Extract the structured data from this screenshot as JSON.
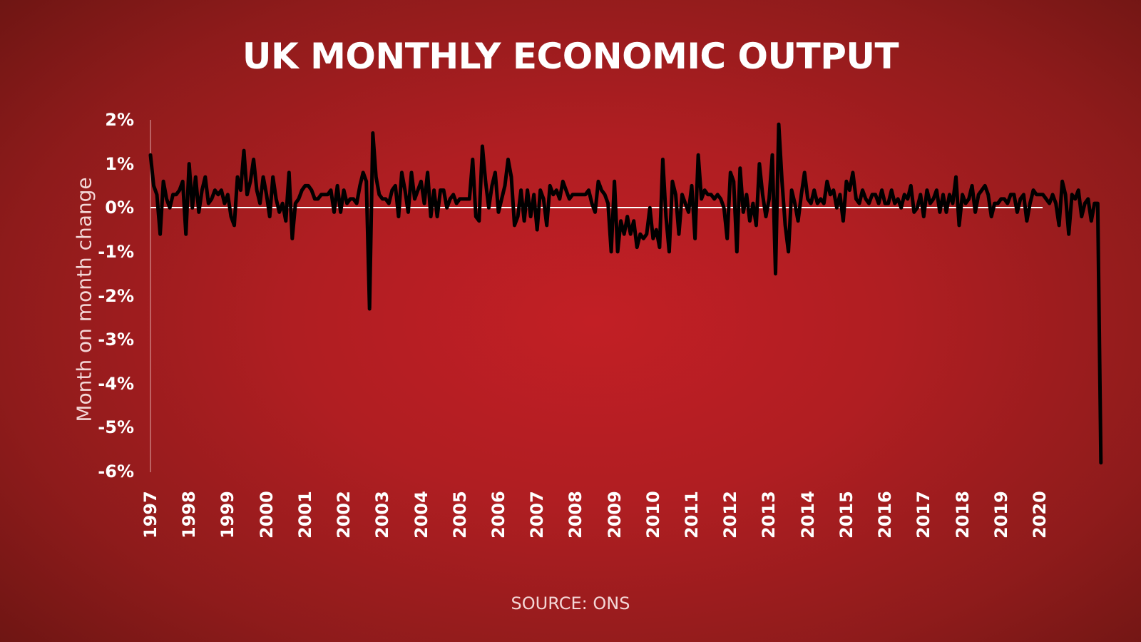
{
  "title": "UK MONTHLY ECONOMIC OUTPUT",
  "source": "SOURCE: ONS",
  "colors": {
    "background_center": "#c21f25",
    "background_edge": "#661411",
    "line": "#000000",
    "zero_line": "#ffffff",
    "text": "#ffffff"
  },
  "chart_data": {
    "type": "line",
    "title": "UK MONTHLY ECONOMIC OUTPUT",
    "xlabel": "",
    "ylabel": "Month on month change",
    "ylim": [
      -6,
      2
    ],
    "yticks": [
      "2%",
      "1%",
      "0%",
      "-1%",
      "-2%",
      "-3%",
      "-4%",
      "-5%",
      "-6%"
    ],
    "xticks": [
      "1997",
      "1998",
      "1999",
      "2000",
      "2001",
      "2002",
      "2003",
      "2004",
      "2005",
      "2006",
      "2007",
      "2008",
      "2009",
      "2010",
      "2011",
      "2012",
      "2013",
      "2014",
      "2015",
      "2016",
      "2017",
      "2018",
      "2019",
      "2020"
    ],
    "grid": false,
    "legend": null,
    "source": "SOURCE: ONS",
    "x_start": "1997-01",
    "x_step": "month",
    "series": [
      {
        "name": "Month on month change (%)",
        "values": [
          1.2,
          0.5,
          0.3,
          -0.6,
          0.6,
          0.2,
          0.0,
          0.3,
          0.3,
          0.4,
          0.6,
          -0.6,
          1.0,
          0.0,
          0.7,
          -0.1,
          0.4,
          0.7,
          0.1,
          0.2,
          0.4,
          0.3,
          0.4,
          0.1,
          0.3,
          -0.2,
          -0.4,
          0.7,
          0.4,
          1.3,
          0.3,
          0.6,
          1.1,
          0.4,
          0.1,
          0.7,
          0.3,
          -0.2,
          0.7,
          0.2,
          -0.1,
          0.1,
          -0.3,
          0.8,
          -0.7,
          0.1,
          0.2,
          0.4,
          0.5,
          0.5,
          0.4,
          0.2,
          0.2,
          0.3,
          0.3,
          0.3,
          0.4,
          -0.1,
          0.5,
          -0.1,
          0.4,
          0.1,
          0.2,
          0.2,
          0.1,
          0.5,
          0.8,
          0.6,
          -2.3,
          1.7,
          0.7,
          0.3,
          0.2,
          0.2,
          0.1,
          0.4,
          0.5,
          -0.2,
          0.8,
          0.4,
          -0.1,
          0.8,
          0.2,
          0.4,
          0.6,
          0.1,
          0.8,
          -0.2,
          0.4,
          -0.2,
          0.4,
          0.4,
          0.0,
          0.2,
          0.3,
          0.1,
          0.2,
          0.2,
          0.2,
          0.2,
          1.1,
          -0.2,
          -0.3,
          1.4,
          0.6,
          0.0,
          0.5,
          0.8,
          -0.1,
          0.2,
          0.5,
          1.1,
          0.7,
          -0.4,
          -0.2,
          0.4,
          -0.3,
          0.4,
          -0.2,
          0.3,
          -0.5,
          0.4,
          0.2,
          -0.4,
          0.5,
          0.3,
          0.4,
          0.2,
          0.6,
          0.4,
          0.2,
          0.3,
          0.3,
          0.3,
          0.3,
          0.3,
          0.4,
          0.1,
          -0.1,
          0.6,
          0.4,
          0.3,
          0.1,
          -1.0,
          0.6,
          -1.0,
          -0.3,
          -0.6,
          -0.2,
          -0.6,
          -0.3,
          -0.9,
          -0.6,
          -0.7,
          -0.6,
          0.0,
          -0.7,
          -0.5,
          -0.9,
          1.1,
          -0.2,
          -1.0,
          0.6,
          0.3,
          -0.6,
          0.3,
          0.1,
          -0.1,
          0.5,
          -0.7,
          1.2,
          0.2,
          0.4,
          0.3,
          0.3,
          0.2,
          0.3,
          0.2,
          0.0,
          -0.7,
          0.8,
          0.6,
          -1.0,
          0.9,
          -0.1,
          0.3,
          -0.3,
          0.1,
          -0.4,
          1.0,
          0.3,
          -0.2,
          0.2,
          1.2,
          -1.5,
          1.9,
          0.6,
          -0.4,
          -1.0,
          0.4,
          0.1,
          -0.3,
          0.3,
          0.8,
          0.2,
          0.1,
          0.4,
          0.1,
          0.2,
          0.1,
          0.6,
          0.3,
          0.4,
          0.0,
          0.3,
          -0.3,
          0.6,
          0.4,
          0.8,
          0.2,
          0.1,
          0.4,
          0.2,
          0.1,
          0.3,
          0.3,
          0.1,
          0.4,
          0.1,
          0.1,
          0.4,
          0.1,
          0.2,
          0.0,
          0.3,
          0.2,
          0.5,
          -0.1,
          0.0,
          0.3,
          -0.2,
          0.4,
          0.1,
          0.2,
          0.4,
          -0.1,
          0.3,
          -0.1,
          0.3,
          0.1,
          0.7,
          -0.4,
          0.3,
          0.1,
          0.2,
          0.5,
          -0.1,
          0.3,
          0.4,
          0.5,
          0.3,
          -0.2,
          0.1,
          0.1,
          0.2,
          0.2,
          0.1,
          0.3,
          0.3,
          -0.1,
          0.2,
          0.3,
          -0.3,
          0.1,
          0.4,
          0.3,
          0.3,
          0.3,
          0.2,
          0.1,
          0.3,
          0.1,
          -0.4,
          0.6,
          0.3,
          -0.6,
          0.3,
          0.2,
          0.4,
          -0.2,
          0.1,
          0.2,
          -0.3,
          0.1,
          0.1,
          -5.8
        ]
      }
    ]
  }
}
